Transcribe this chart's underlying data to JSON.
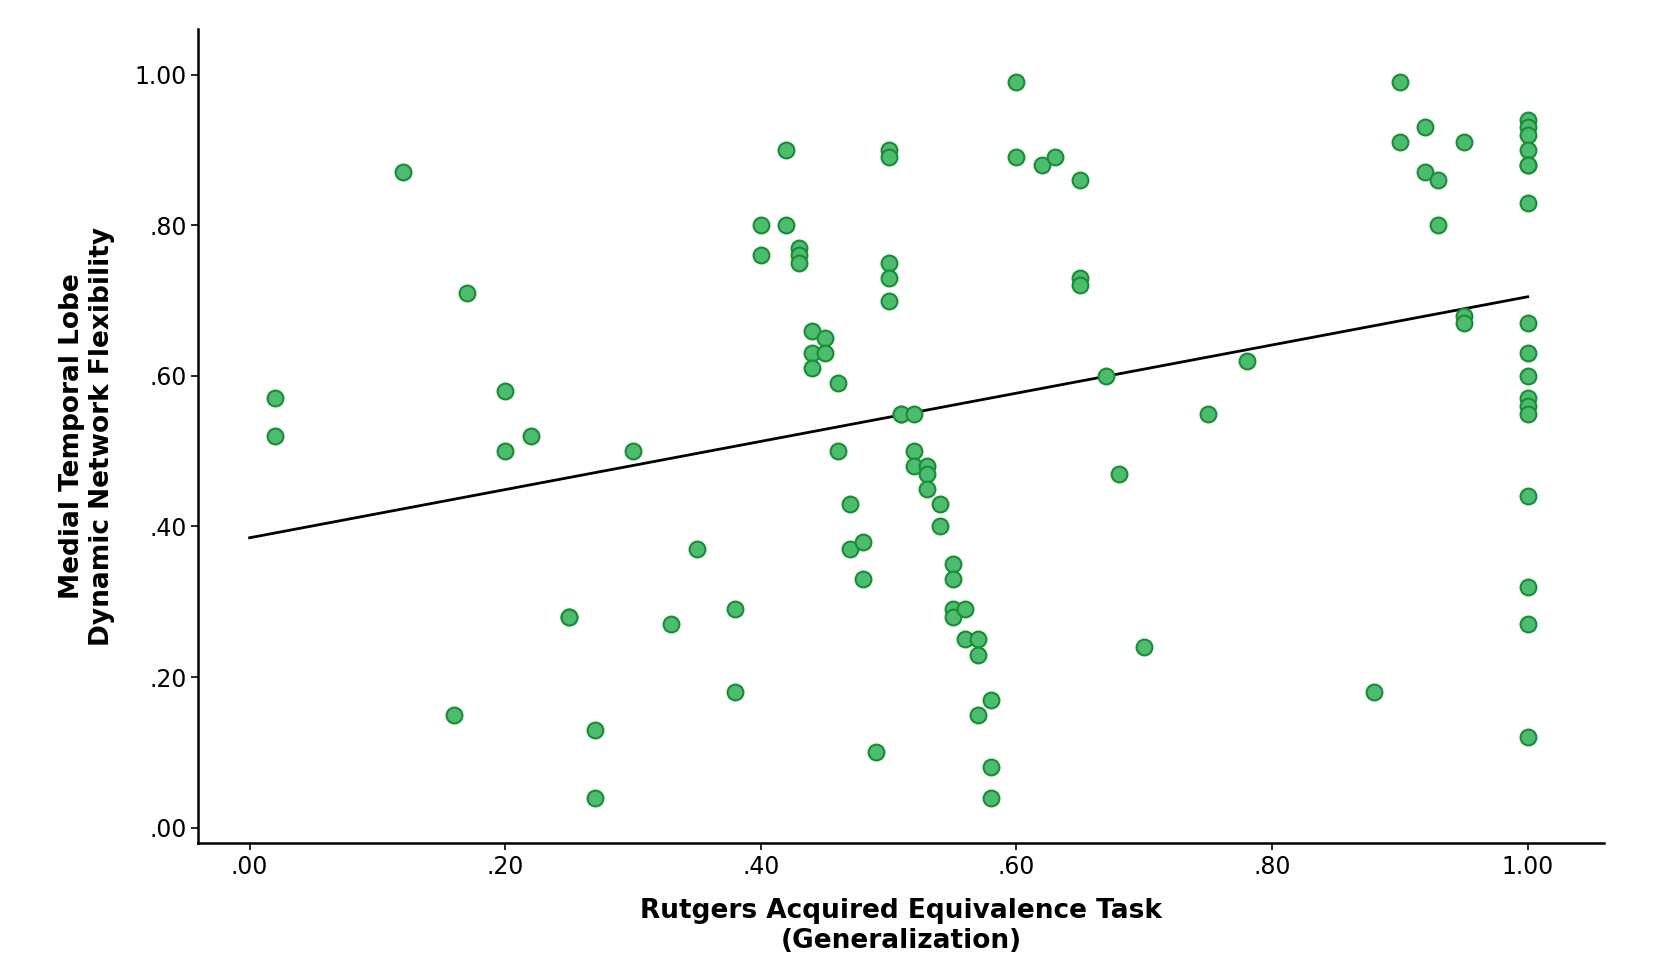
{
  "x_points": [
    0.02,
    0.02,
    0.12,
    0.16,
    0.17,
    0.2,
    0.2,
    0.22,
    0.25,
    0.25,
    0.27,
    0.27,
    0.3,
    0.33,
    0.35,
    0.38,
    0.38,
    0.4,
    0.4,
    0.42,
    0.42,
    0.43,
    0.43,
    0.43,
    0.44,
    0.44,
    0.44,
    0.45,
    0.45,
    0.46,
    0.46,
    0.47,
    0.47,
    0.48,
    0.48,
    0.49,
    0.5,
    0.5,
    0.5,
    0.5,
    0.5,
    0.51,
    0.51,
    0.52,
    0.52,
    0.52,
    0.53,
    0.53,
    0.53,
    0.54,
    0.54,
    0.55,
    0.55,
    0.55,
    0.55,
    0.56,
    0.56,
    0.57,
    0.57,
    0.57,
    0.58,
    0.58,
    0.58,
    0.6,
    0.6,
    0.62,
    0.63,
    0.65,
    0.65,
    0.65,
    0.67,
    0.68,
    0.7,
    0.75,
    0.78,
    0.88,
    0.9,
    0.9,
    0.92,
    0.92,
    0.93,
    0.93,
    0.95,
    0.95,
    0.95,
    1.0,
    1.0,
    1.0,
    1.0,
    1.0,
    1.0,
    1.0,
    1.0,
    1.0,
    1.0,
    1.0,
    1.0,
    1.0,
    1.0,
    1.0,
    1.0,
    1.0
  ],
  "y_points": [
    0.57,
    0.52,
    0.87,
    0.15,
    0.71,
    0.58,
    0.5,
    0.52,
    0.28,
    0.28,
    0.13,
    0.04,
    0.5,
    0.27,
    0.37,
    0.29,
    0.18,
    0.8,
    0.76,
    0.9,
    0.8,
    0.77,
    0.76,
    0.75,
    0.66,
    0.63,
    0.61,
    0.65,
    0.63,
    0.59,
    0.5,
    0.43,
    0.37,
    0.38,
    0.33,
    0.1,
    0.9,
    0.89,
    0.75,
    0.73,
    0.7,
    0.55,
    0.55,
    0.55,
    0.5,
    0.48,
    0.48,
    0.47,
    0.45,
    0.43,
    0.4,
    0.35,
    0.33,
    0.29,
    0.28,
    0.29,
    0.25,
    0.25,
    0.23,
    0.15,
    0.17,
    0.08,
    0.04,
    0.99,
    0.89,
    0.88,
    0.89,
    0.86,
    0.73,
    0.72,
    0.6,
    0.47,
    0.24,
    0.55,
    0.62,
    0.18,
    0.99,
    0.91,
    0.93,
    0.87,
    0.86,
    0.8,
    0.91,
    0.68,
    0.67,
    0.94,
    0.93,
    0.92,
    0.9,
    0.88,
    0.88,
    0.83,
    0.67,
    0.63,
    0.6,
    0.57,
    0.56,
    0.55,
    0.44,
    0.32,
    0.27,
    0.12
  ],
  "line_x": [
    0.0,
    1.0
  ],
  "line_y": [
    0.385,
    0.705
  ],
  "dot_color": "#4cbc6e",
  "dot_edge_color": "#1a8c35",
  "line_color": "#000000",
  "bg_color": "#ffffff",
  "xlabel": "Rutgers Acquired Equivalence Task\n(Generalization)",
  "ylabel": "Medial Temporal Lobe\nDynamic Network Flexibility",
  "xlim": [
    -0.04,
    1.06
  ],
  "ylim": [
    -0.02,
    1.06
  ],
  "xticks": [
    0.0,
    0.2,
    0.4,
    0.6,
    0.8,
    1.0
  ],
  "yticks": [
    0.0,
    0.2,
    0.4,
    0.6,
    0.8,
    1.0
  ],
  "xlabel_fontsize": 19,
  "ylabel_fontsize": 19,
  "tick_fontsize": 17,
  "dot_size": 130,
  "line_width": 2.0
}
